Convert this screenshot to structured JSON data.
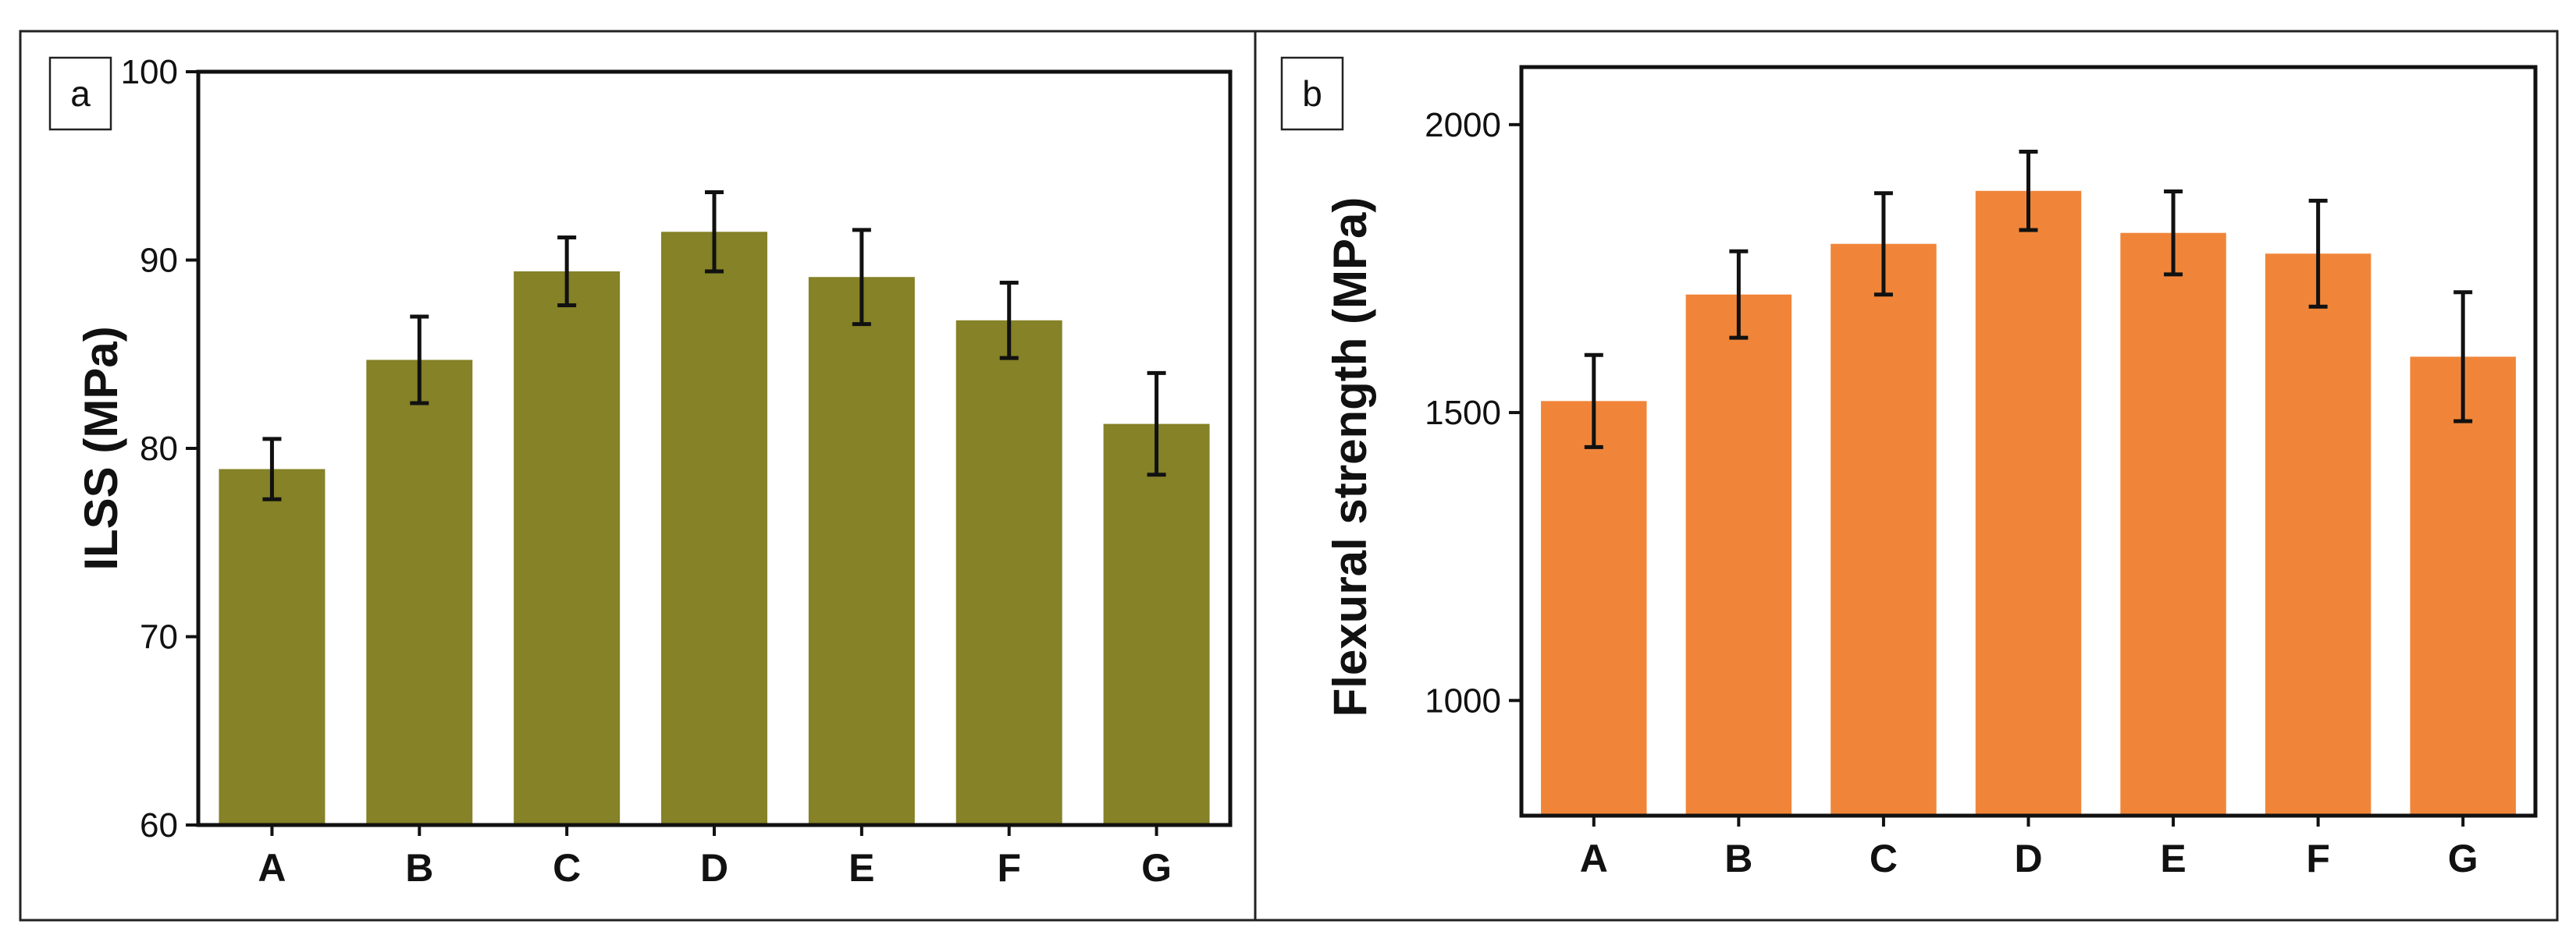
{
  "chart_data": [
    {
      "type": "bar",
      "panel_label": "a",
      "title": "",
      "xlabel": "",
      "ylabel": "ILSS (MPa)",
      "categories": [
        "A",
        "B",
        "C",
        "D",
        "E",
        "F",
        "G"
      ],
      "values": [
        78.9,
        84.7,
        89.4,
        91.5,
        89.1,
        86.8,
        81.3
      ],
      "errors": [
        1.6,
        2.3,
        1.8,
        2.1,
        2.5,
        2.0,
        2.7
      ],
      "ylim": [
        60,
        100
      ],
      "yticks": [
        60,
        70,
        80,
        90,
        100
      ],
      "grid": false,
      "color": "#858227"
    },
    {
      "type": "bar",
      "panel_label": "b",
      "title": "",
      "xlabel": "",
      "ylabel": "Flexural strength (MPa)",
      "categories": [
        "A",
        "B",
        "C",
        "D",
        "E",
        "F",
        "G"
      ],
      "values": [
        1520,
        1705,
        1793,
        1885,
        1812,
        1776,
        1597
      ],
      "errors": [
        80,
        75,
        88,
        68,
        72,
        92,
        112
      ],
      "ylim": [
        800,
        2100
      ],
      "yticks": [
        1000,
        1500,
        2000
      ],
      "grid": false,
      "color": "#f08539"
    }
  ]
}
